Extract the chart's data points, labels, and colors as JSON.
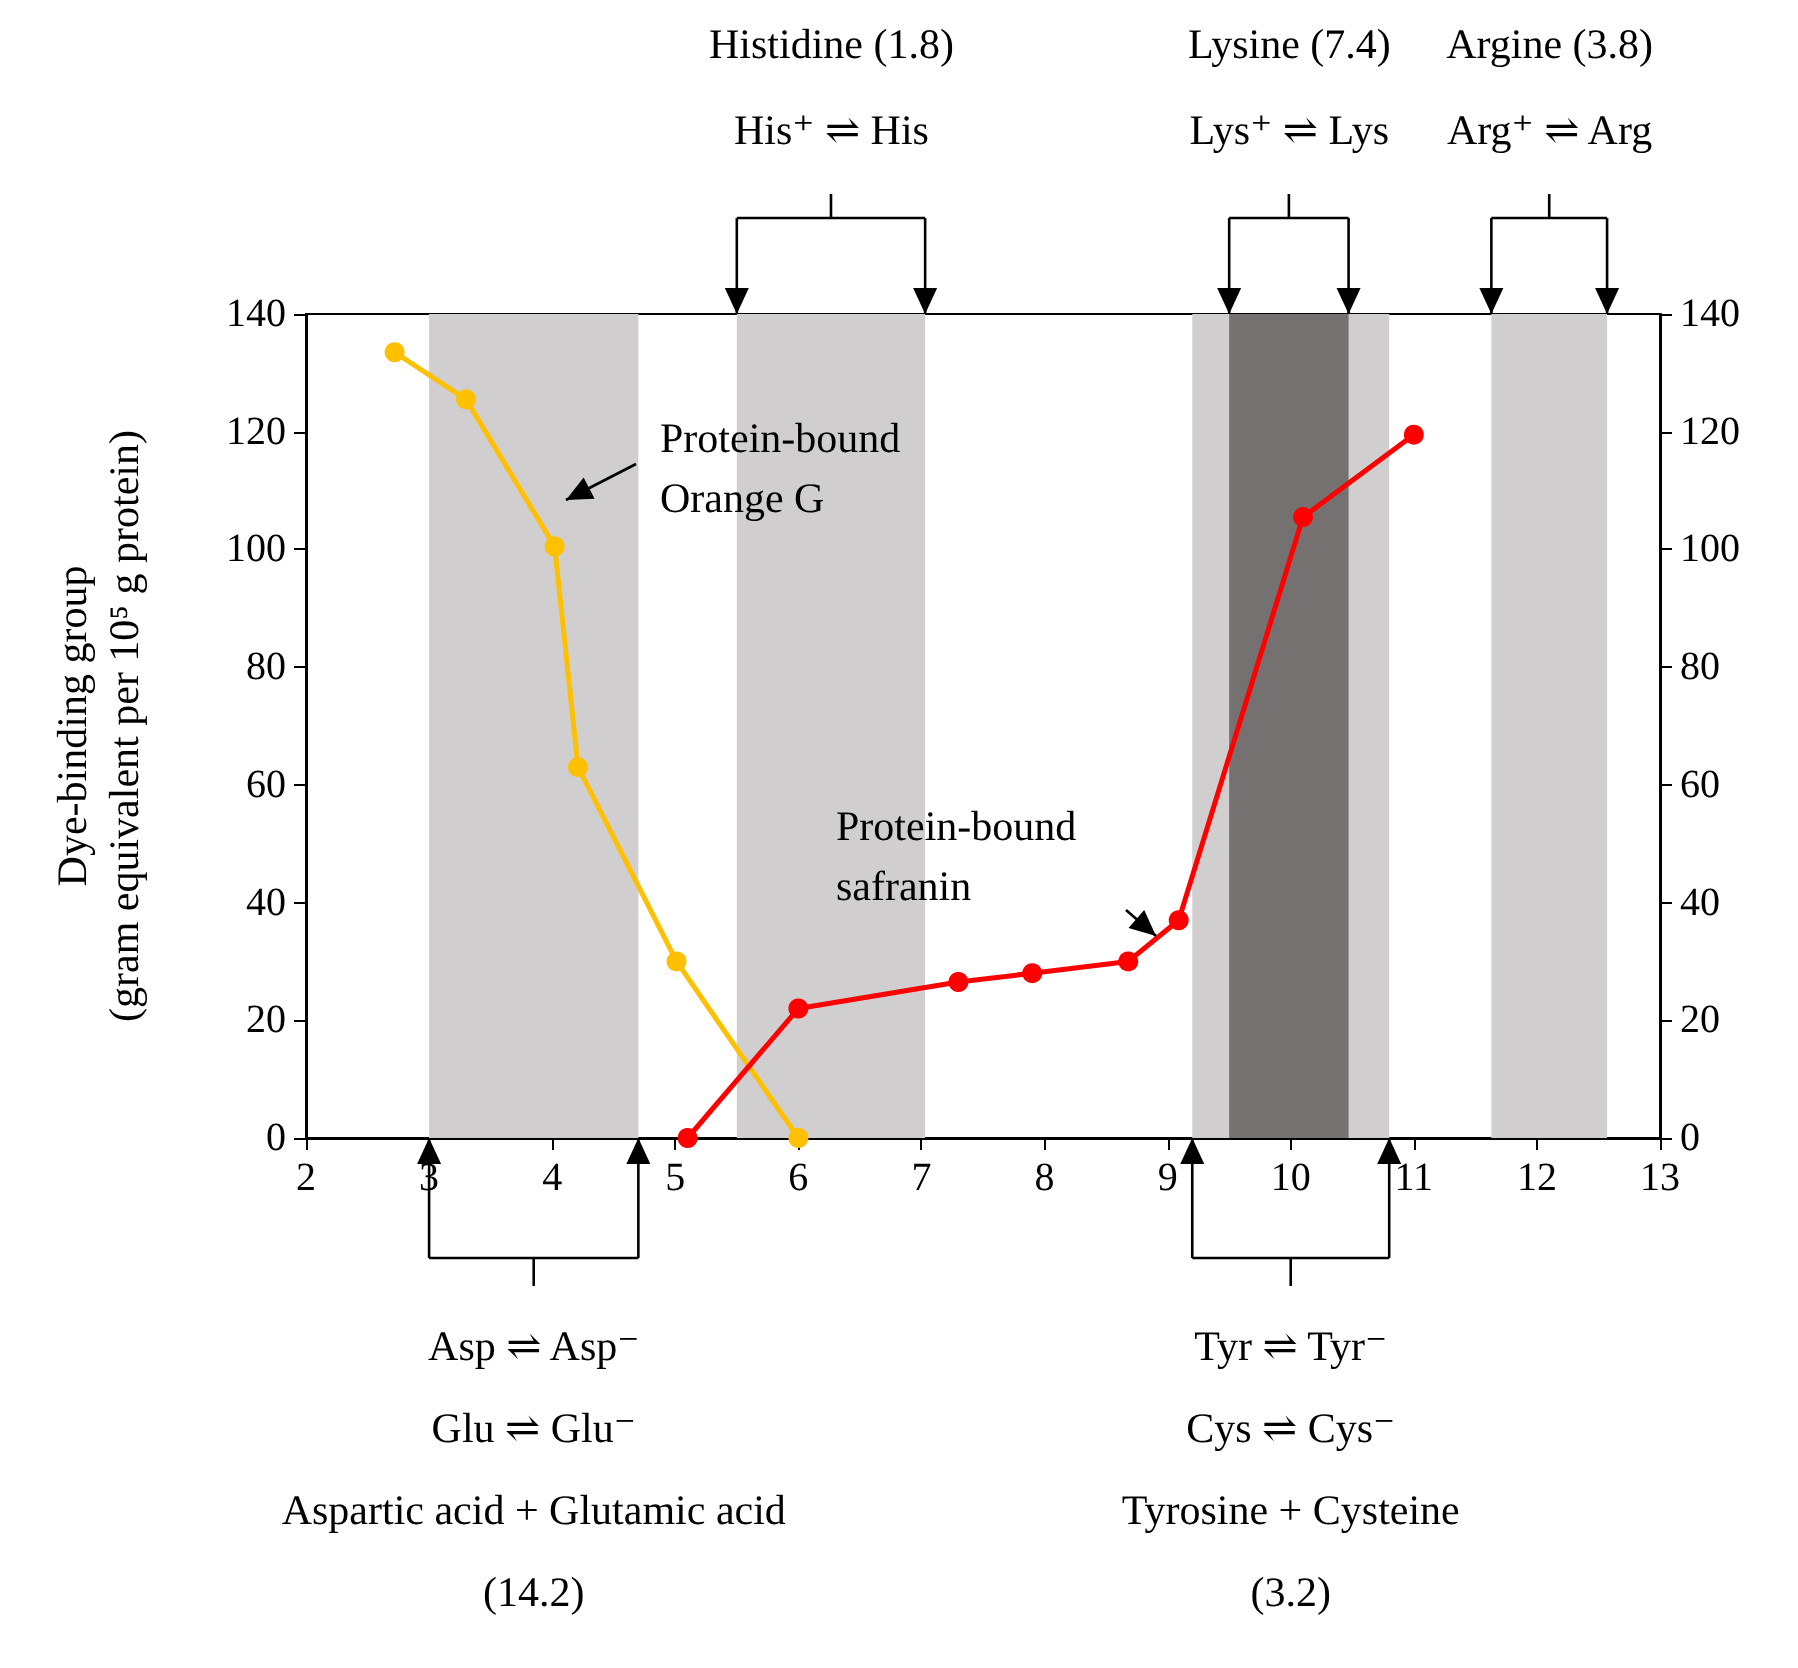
{
  "chart_data": {
    "type": "line",
    "ylabel": "Dye-binding group\n(gram equivalent per 10⁵ g protein)",
    "xlim": [
      2,
      13
    ],
    "xticks": [
      2,
      3,
      4,
      5,
      6,
      7,
      8,
      9,
      10,
      11,
      12,
      13
    ],
    "ylim": [
      0,
      140
    ],
    "yticks": [
      0,
      20,
      40,
      60,
      80,
      100,
      120,
      140
    ],
    "y2lim": [
      0,
      140
    ],
    "y2ticks": [
      0,
      20,
      40,
      60,
      80,
      100,
      120,
      140
    ],
    "grid": false,
    "marker": "circle",
    "line_style": "solid",
    "series": [
      {
        "color": "#ffc000",
        "x": [
          2.72,
          3.3,
          4.02,
          4.21,
          5.01,
          6.0
        ],
        "values": [
          133.5,
          125.5,
          100.5,
          63,
          30,
          0
        ]
      },
      {
        "color": "#ff0000",
        "x": [
          5.1,
          6.0,
          7.3,
          7.9,
          8.68,
          9.09,
          10.1,
          11.0
        ],
        "values": [
          0,
          22,
          26.5,
          28,
          30,
          37,
          105.5,
          119.5
        ]
      }
    ],
    "bands": [
      {
        "axis": "x",
        "from": 3.0,
        "to": 4.7,
        "color": "#d0cece"
      },
      {
        "axis": "x",
        "from": 5.5,
        "to": 7.03,
        "color": "#d0cece"
      },
      {
        "axis": "x",
        "from": 9.2,
        "to": 10.8,
        "color": "#d0cece"
      },
      {
        "axis": "x",
        "from": 9.5,
        "to": 10.47,
        "color": "#767171"
      },
      {
        "axis": "x",
        "from": 11.63,
        "to": 12.57,
        "color": "#d0cece"
      }
    ],
    "annotations": [
      "Histidine (1.8)\nHis⁺ ⇌ His",
      "Lysine (7.4)\nLys⁺ ⇌ Lys",
      "Argine (3.8)\nArg⁺ ⇌ Arg",
      "Protein-bound\nOrange G",
      "Protein-bound\nsafranin",
      "Asp ⇌ Asp⁻\nGlu ⇌ Glu⁻\nAspartic acid + Glutamic acid\n(14.2)",
      "Tyr ⇌ Tyr⁻\nCys ⇌ Cys⁻\nTyrosine + Cysteine\n(3.2)"
    ]
  }
}
